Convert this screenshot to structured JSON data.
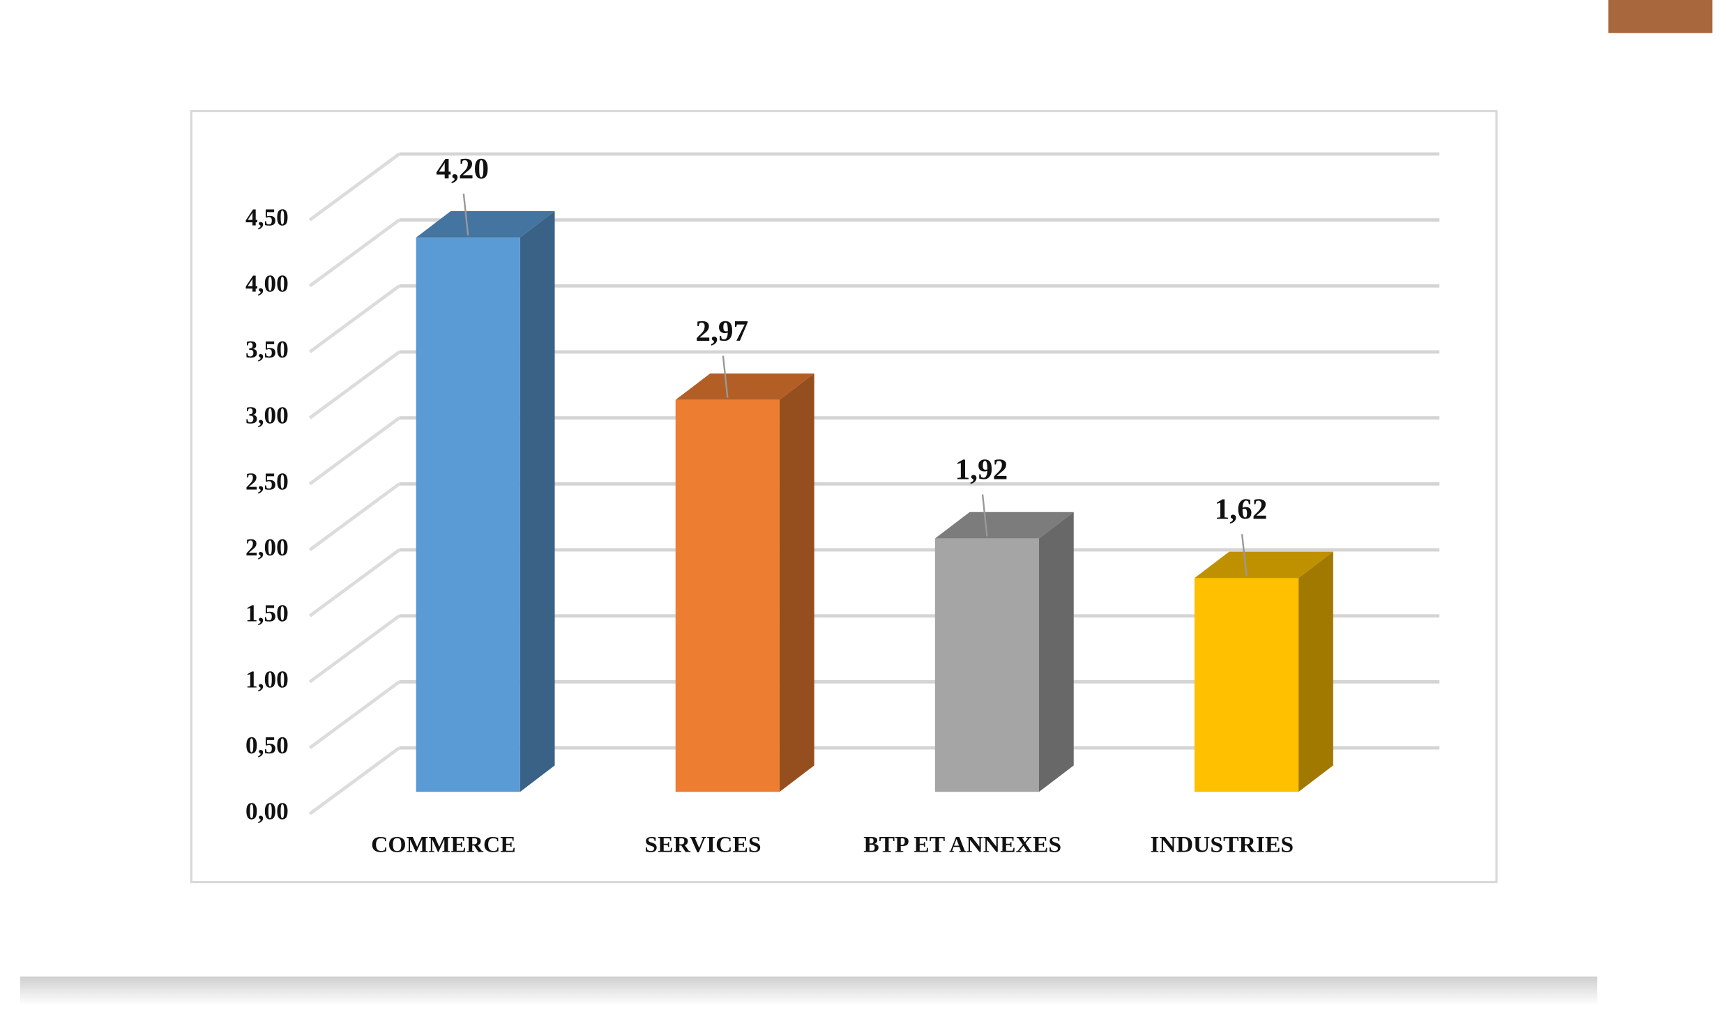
{
  "chart_data": {
    "type": "bar3d",
    "categories": [
      "COMMERCE",
      "SERVICES",
      "BTP ET ANNEXES",
      "INDUSTRIES"
    ],
    "values": [
      4.2,
      2.97,
      1.92,
      1.62
    ],
    "value_labels": [
      "4,20",
      "2,97",
      "1,92",
      "1,62"
    ],
    "colors": [
      "#5b9bd5",
      "#ed7d31",
      "#a5a5a5",
      "#ffc000"
    ],
    "ylim": [
      0,
      4.5
    ],
    "yticks": [
      {
        "value": 0,
        "label": "0,00"
      },
      {
        "value": 0.5,
        "label": "0,50"
      },
      {
        "value": 1,
        "label": "1,00"
      },
      {
        "value": 1.5,
        "label": "1,50"
      },
      {
        "value": 2,
        "label": "2,00"
      },
      {
        "value": 2.5,
        "label": "2,50"
      },
      {
        "value": 3,
        "label": "3,00"
      },
      {
        "value": 3.5,
        "label": "3,50"
      },
      {
        "value": 4,
        "label": "4,00"
      },
      {
        "value": 4.5,
        "label": "4,50"
      }
    ],
    "grid": true
  }
}
